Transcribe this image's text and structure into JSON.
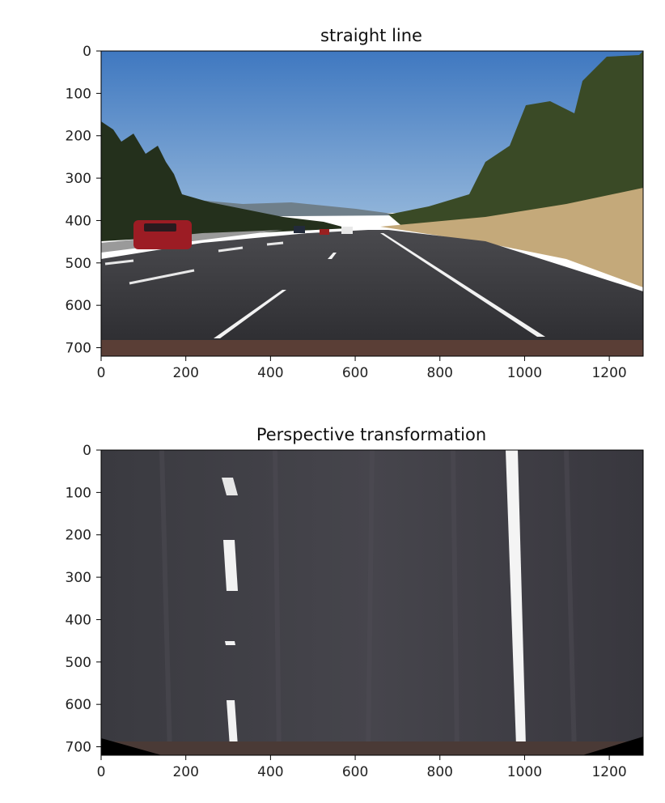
{
  "chart_data": [
    {
      "type": "image",
      "title": "straight line",
      "xlim": [
        0,
        1280
      ],
      "ylim": [
        720,
        0
      ],
      "x_ticks": [
        0,
        200,
        400,
        600,
        800,
        1000,
        1200
      ],
      "y_ticks": [
        0,
        100,
        200,
        300,
        400,
        500,
        600,
        700
      ],
      "colors": {
        "sky": "#5b8fcb",
        "road": "#38383c",
        "grass": "#c2a878",
        "trees": "#2c3a22",
        "lane_marking": "#ffffff",
        "car": "#9c1c24"
      }
    },
    {
      "type": "image",
      "title": "Perspective transformation",
      "xlim": [
        0,
        1280
      ],
      "ylim": [
        720,
        0
      ],
      "x_ticks": [
        0,
        200,
        400,
        600,
        800,
        1000,
        1200
      ],
      "y_ticks": [
        0,
        100,
        200,
        300,
        400,
        500,
        600,
        700
      ],
      "colors": {
        "road": "#3b3a40",
        "lane_marking": "#f2f2f2",
        "dirt": "#4a3a36",
        "black_corner": "#000000"
      }
    }
  ]
}
